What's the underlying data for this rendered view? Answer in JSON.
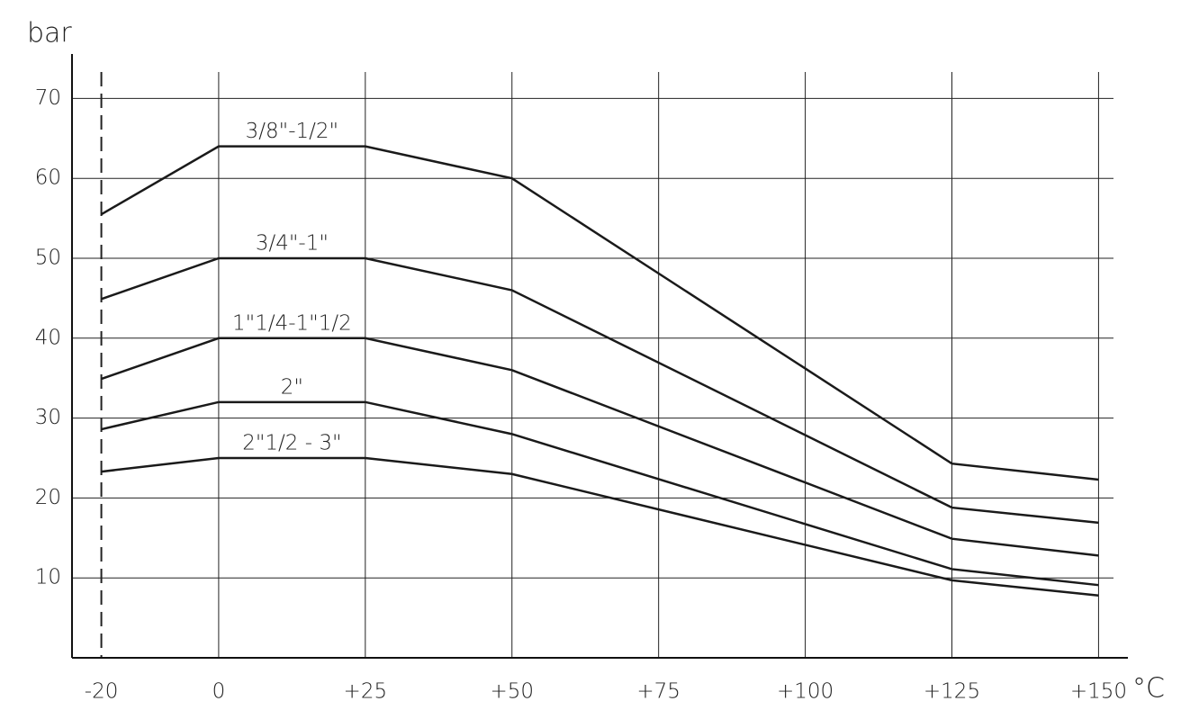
{
  "chart_data": {
    "type": "line",
    "y_label": "bar",
    "x_label": "°C",
    "x": [
      -20,
      0,
      25,
      50,
      125,
      150
    ],
    "series": [
      {
        "name": "3/8\"-1/2\"",
        "color": "#1a1a1a",
        "values": [
          55.5,
          64,
          64,
          60,
          24.3,
          22.3
        ]
      },
      {
        "name": "3/4\"-1\"",
        "color": "#1a1a1a",
        "values": [
          44.9,
          50,
          50,
          46,
          18.8,
          16.9
        ]
      },
      {
        "name": "1\"1/4-1\"1/2",
        "color": "#1a1a1a",
        "values": [
          34.9,
          40,
          40,
          36,
          14.9,
          12.8
        ]
      },
      {
        "name": "2\"",
        "color": "#1a1a1a",
        "values": [
          28.6,
          32,
          32,
          28,
          11.1,
          9.1
        ]
      },
      {
        "name": "2\"1/2  -  3\"",
        "color": "#1a1a1a",
        "values": [
          23.3,
          25,
          25,
          23,
          9.7,
          7.8
        ]
      }
    ],
    "xlim": [
      -25,
      155
    ],
    "ylim": [
      0,
      75
    ],
    "xticks": [
      -20,
      0,
      {
        "value": 25,
        "label": "+25"
      },
      {
        "value": 50,
        "label": "+50"
      },
      {
        "value": 75,
        "label": "+75"
      },
      {
        "value": 100,
        "label": "+100"
      },
      {
        "value": 125,
        "label": "+125"
      },
      {
        "value": 150,
        "label": "+150"
      }
    ],
    "yticks": [
      10,
      20,
      30,
      40,
      50,
      60,
      70
    ],
    "grid": true
  }
}
